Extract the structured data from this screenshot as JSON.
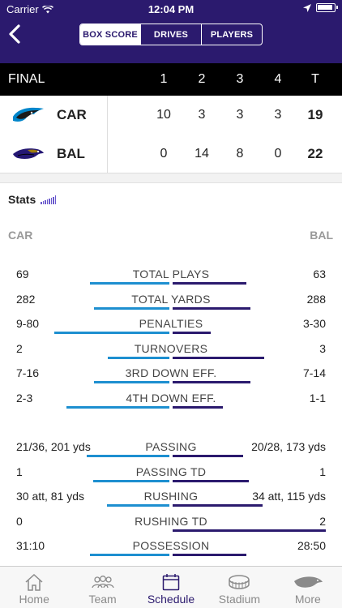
{
  "status": {
    "carrier": "Carrier",
    "time": "12:04 PM"
  },
  "nav": {
    "tabs": [
      {
        "label": "BOX SCORE"
      },
      {
        "label": "DRIVES"
      },
      {
        "label": "PLAYERS"
      }
    ]
  },
  "score": {
    "status": "FINAL",
    "headers": [
      "1",
      "2",
      "3",
      "4",
      "T"
    ],
    "teams": [
      {
        "abbr": "CAR",
        "quarters": [
          "10",
          "3",
          "3",
          "3"
        ],
        "total": "19"
      },
      {
        "abbr": "BAL",
        "quarters": [
          "0",
          "14",
          "8",
          "0"
        ],
        "total": "22"
      }
    ]
  },
  "stats": {
    "title": "Stats",
    "left_team": "CAR",
    "right_team": "BAL",
    "rows": [
      {
        "name": "TOTAL PLAYS",
        "left": "69",
        "right": "63",
        "lf": 0.52,
        "rf": 0.48
      },
      {
        "name": "TOTAL YARDS",
        "left": "282",
        "right": "288",
        "lf": 0.49,
        "rf": 0.51
      },
      {
        "name": "PENALTIES",
        "left": "9-80",
        "right": "3-30",
        "lf": 0.75,
        "rf": 0.25
      },
      {
        "name": "TURNOVERS",
        "left": "2",
        "right": "3",
        "lf": 0.4,
        "rf": 0.6
      },
      {
        "name": "3RD DOWN EFF.",
        "left": "7-16",
        "right": "7-14",
        "lf": 0.49,
        "rf": 0.51
      },
      {
        "name": "4TH DOWN EFF.",
        "left": "2-3",
        "right": "1-1",
        "lf": 0.67,
        "rf": 0.33
      },
      {
        "name": "PASSING",
        "left": "21/36, 201 yds",
        "right": "20/28, 173 yds",
        "lf": 0.54,
        "rf": 0.46
      },
      {
        "name": "PASSING TD",
        "left": "1",
        "right": "1",
        "lf": 0.5,
        "rf": 0.5
      },
      {
        "name": "RUSHING",
        "left": "30 att, 81 yds",
        "right": "34 att, 115 yds",
        "lf": 0.41,
        "rf": 0.59
      },
      {
        "name": "RUSHING TD",
        "left": "0",
        "right": "2",
        "lf": 0.0,
        "rf": 1.0
      },
      {
        "name": "POSSESSION",
        "left": "31:10",
        "right": "28:50",
        "lf": 0.52,
        "rf": 0.48
      }
    ]
  },
  "colors": {
    "left_bar": "#1d8fd0",
    "right_bar": "#2b1a6e",
    "header": "#2b1a6e"
  },
  "tabbar": [
    {
      "label": "Home",
      "icon": "home-icon"
    },
    {
      "label": "Team",
      "icon": "team-icon"
    },
    {
      "label": "Schedule",
      "icon": "calendar-icon"
    },
    {
      "label": "Stadium",
      "icon": "stadium-icon"
    },
    {
      "label": "More",
      "icon": "raven-icon"
    }
  ]
}
